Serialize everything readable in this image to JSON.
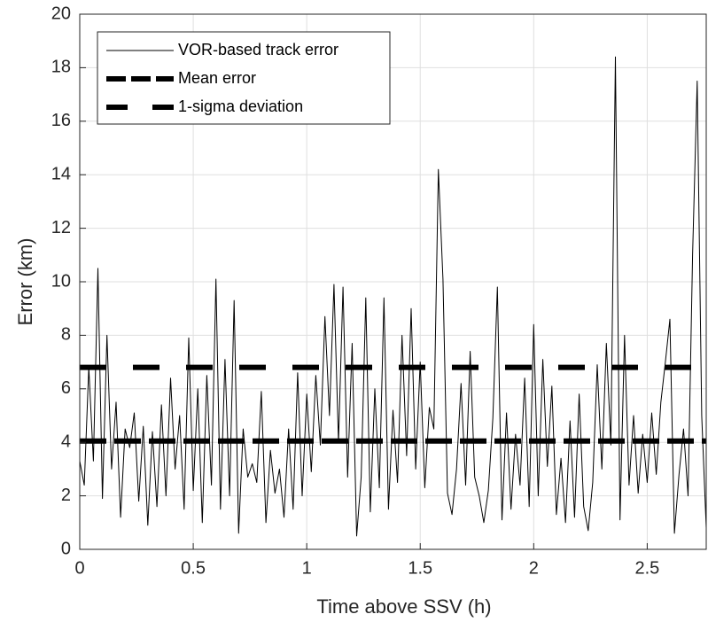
{
  "chart_data": {
    "type": "line",
    "xlabel": "Time above SSV (h)",
    "ylabel": "Error (km)",
    "xlim": [
      0,
      2.76
    ],
    "ylim": [
      0,
      20
    ],
    "xticks": [
      0,
      0.5,
      1,
      1.5,
      2,
      2.5
    ],
    "yticks": [
      0,
      2,
      4,
      6,
      8,
      10,
      12,
      14,
      16,
      18,
      20
    ],
    "grid": true,
    "legend": "upper left",
    "series": [
      {
        "name": "VOR-based track error",
        "color": "#000000",
        "linestyle": "solid",
        "x": [
          0,
          0.02,
          0.04,
          0.06,
          0.08,
          0.1,
          0.12,
          0.14,
          0.16,
          0.18,
          0.2,
          0.22,
          0.24,
          0.26,
          0.28,
          0.3,
          0.32,
          0.34,
          0.36,
          0.38,
          0.4,
          0.42,
          0.44,
          0.46,
          0.48,
          0.5,
          0.52,
          0.54,
          0.56,
          0.58,
          0.6,
          0.62,
          0.64,
          0.66,
          0.68,
          0.7,
          0.72,
          0.74,
          0.76,
          0.78,
          0.8,
          0.82,
          0.84,
          0.86,
          0.88,
          0.9,
          0.92,
          0.94,
          0.96,
          0.98,
          1,
          1.02,
          1.04,
          1.06,
          1.08,
          1.1,
          1.12,
          1.14,
          1.16,
          1.18,
          1.2,
          1.22,
          1.24,
          1.26,
          1.28,
          1.3,
          1.32,
          1.34,
          1.36,
          1.38,
          1.4,
          1.42,
          1.44,
          1.46,
          1.48,
          1.5,
          1.52,
          1.54,
          1.56,
          1.58,
          1.6,
          1.62,
          1.64,
          1.66,
          1.68,
          1.7,
          1.72,
          1.74,
          1.76,
          1.78,
          1.8,
          1.82,
          1.84,
          1.86,
          1.88,
          1.9,
          1.92,
          1.94,
          1.96,
          1.98,
          2,
          2.02,
          2.04,
          2.06,
          2.08,
          2.1,
          2.12,
          2.14,
          2.16,
          2.18,
          2.2,
          2.22,
          2.24,
          2.26,
          2.28,
          2.3,
          2.32,
          2.34,
          2.36,
          2.38,
          2.4,
          2.42,
          2.44,
          2.46,
          2.48,
          2.5,
          2.52,
          2.54,
          2.56,
          2.58,
          2.6,
          2.62,
          2.64,
          2.66,
          2.68,
          2.7,
          2.72,
          2.74,
          2.76
        ],
        "values": [
          3.3,
          2.4,
          6.8,
          3.3,
          10.5,
          1.9,
          8.0,
          3.0,
          5.5,
          1.2,
          4.5,
          3.8,
          5.1,
          1.8,
          4.6,
          0.9,
          4.4,
          1.6,
          5.4,
          2.0,
          6.4,
          3.0,
          5.0,
          1.5,
          7.9,
          2.2,
          6.0,
          1.0,
          6.5,
          2.4,
          10.1,
          1.5,
          7.1,
          2.0,
          9.3,
          0.6,
          4.5,
          2.7,
          3.2,
          2.5,
          5.9,
          1.0,
          3.7,
          2.1,
          3.0,
          1.2,
          4.5,
          1.5,
          6.6,
          2.0,
          5.8,
          2.9,
          6.5,
          3.9,
          8.7,
          5.0,
          9.9,
          4.0,
          9.8,
          2.7,
          7.7,
          0.5,
          2.7,
          9.4,
          1.4,
          6.0,
          2.3,
          9.4,
          1.5,
          5.2,
          2.5,
          8.0,
          3.5,
          9.0,
          3.0,
          7.0,
          2.3,
          5.3,
          4.5,
          14.2,
          10.1,
          2.1,
          1.3,
          3.0,
          6.2,
          2.4,
          7.4,
          2.7,
          2.0,
          1.0,
          2.2,
          4.9,
          9.8,
          1.1,
          5.1,
          1.5,
          4.3,
          2.4,
          6.4,
          1.6,
          8.4,
          2.0,
          7.1,
          3.1,
          6.1,
          1.3,
          3.4,
          1.0,
          4.8,
          1.2,
          5.8,
          1.6,
          0.7,
          2.5,
          6.9,
          3.0,
          7.7,
          3.9,
          18.4,
          1.1,
          8.0,
          2.4,
          5.0,
          2.1,
          4.3,
          2.5,
          5.1,
          2.8,
          5.5,
          7.0,
          8.6,
          0.6,
          2.8,
          4.5,
          2.0,
          11.0,
          17.5,
          5.0,
          0.8
        ]
      },
      {
        "name": "Mean error",
        "color": "#000000",
        "linestyle": "dashed",
        "x": [
          0,
          2.76
        ],
        "values": [
          4.05,
          4.05
        ]
      },
      {
        "name": "1-sigma deviation",
        "color": "#000000",
        "linestyle": "dashed",
        "x": [
          0,
          2.76
        ],
        "values": [
          6.8,
          6.8
        ]
      }
    ]
  }
}
